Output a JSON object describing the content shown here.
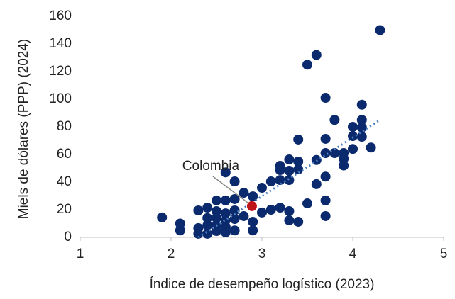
{
  "chart_data": {
    "type": "scatter",
    "xlabel": "Índice de desempeño logístico (2023)",
    "ylabel": "Miels de dólares (PPP) (2024)",
    "xlim": [
      1,
      5
    ],
    "xticks": [
      1,
      2,
      3,
      4,
      5
    ],
    "ylim": [
      0,
      160
    ],
    "yticks": [
      0,
      20,
      40,
      60,
      80,
      100,
      120,
      140,
      160
    ],
    "grid": false,
    "series": [
      {
        "color": "#0b2a6e",
        "x": [
          1.9,
          2.1,
          2.1,
          2.3,
          2.3,
          2.3,
          2.4,
          2.4,
          2.4,
          2.4,
          2.5,
          2.5,
          2.5,
          2.5,
          2.5,
          2.6,
          2.6,
          2.6,
          2.6,
          2.6,
          2.6,
          2.7,
          2.7,
          2.7,
          2.7,
          2.7,
          2.8,
          2.8,
          2.9,
          2.9,
          2.9,
          3.0,
          3.0,
          3.1,
          3.1,
          3.2,
          3.2,
          3.2,
          3.2,
          3.3,
          3.3,
          3.3,
          3.3,
          3.3,
          3.4,
          3.4,
          3.4,
          3.4,
          3.5,
          3.5,
          3.6,
          3.6,
          3.6,
          3.7,
          3.7,
          3.7,
          3.7,
          3.7,
          3.7,
          3.8,
          3.8,
          3.9,
          3.9,
          3.9,
          4.0,
          4.0,
          4.0,
          4.1,
          4.1,
          4.1,
          4.1,
          4.2,
          4.3
        ],
        "values": [
          14.4,
          10,
          5,
          19.5,
          6.7,
          2.6,
          21.5,
          14,
          8.7,
          2.6,
          26.7,
          19,
          14,
          8.7,
          4.6,
          47,
          26.7,
          17.4,
          12.3,
          7.7,
          3.6,
          40.5,
          27.7,
          19.5,
          13.3,
          5,
          32.3,
          15.4,
          29.7,
          11.3,
          5,
          35.9,
          18,
          40.5,
          20,
          51.8,
          48.7,
          41.5,
          21.5,
          56.4,
          48.2,
          41.5,
          19,
          12.3,
          70.8,
          54.9,
          49.2,
          11.3,
          125,
          24.6,
          132,
          56,
          38.5,
          101,
          71.3,
          61,
          44,
          26.7,
          15.4,
          85,
          61,
          61,
          57,
          52,
          80,
          73.3,
          64,
          96,
          85,
          79.5,
          72.8,
          65,
          150
        ]
      }
    ],
    "highlight": {
      "label": "Colombia",
      "color": "#c0141b",
      "x": 2.89,
      "y": 22.6
    },
    "trendline": {
      "color": "#4a7fc1",
      "x": [
        2.3,
        4.3
      ],
      "y": [
        0,
        85
      ]
    }
  }
}
